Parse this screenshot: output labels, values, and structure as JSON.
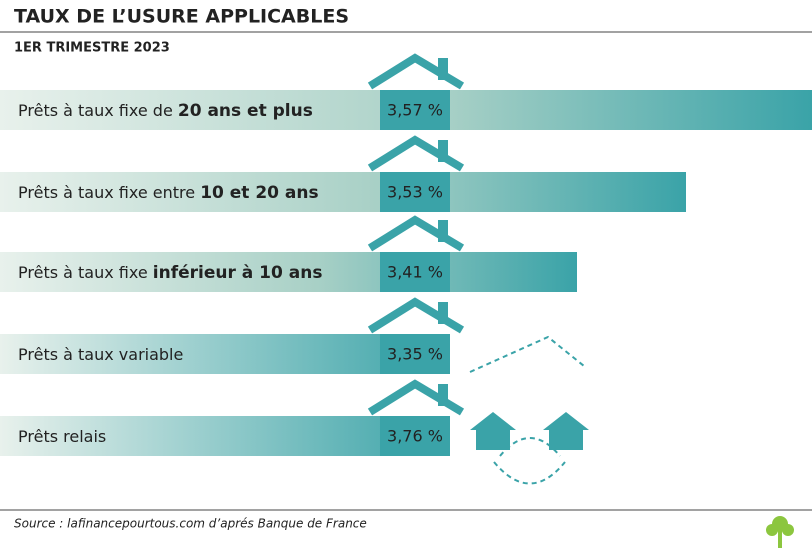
{
  "header": {
    "title": "TAUX DE L’USURE APPLICABLES",
    "subtitle": "1ER TRIMESTRE 2023"
  },
  "rows": [
    {
      "label": [
        "Prêts à taux fixe de ",
        "20 ans et plus"
      ],
      "rate": "3,57 %"
    },
    {
      "label": [
        "Prêts à taux fixe entre ",
        "10 et 20 ans"
      ],
      "rate": "3,53 %"
    },
    {
      "label": [
        "Prêts à taux fixe ",
        "inférieur à 10 ans"
      ],
      "rate": "3,41 %"
    },
    {
      "label": [
        "Prêts à taux variable"
      ],
      "rate": "3,35 %"
    },
    {
      "label": [
        "Prêts relais"
      ],
      "rate": "3,76 %"
    }
  ],
  "footer": {
    "source": "Source : lafinancepourtous.com d’aprés Banque de France"
  }
}
